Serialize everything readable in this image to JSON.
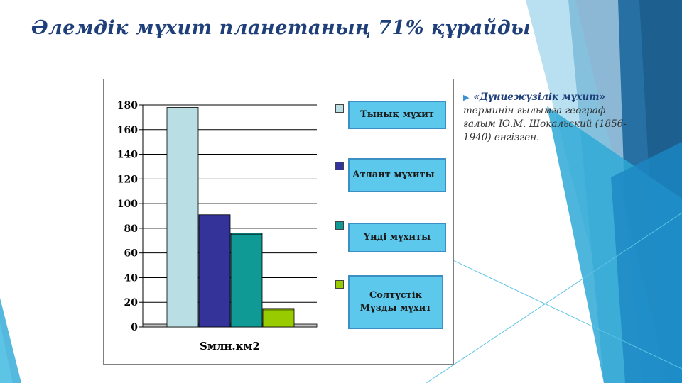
{
  "slide": {
    "title": "Әлемдік мұхит планетаның 71% құрайды",
    "note_term": "«Дүниежүзілік мұхит»",
    "note_text": "терминін ғылымға географ ғалым Ю.М. Шокальский (1856-1940) енгізген."
  },
  "colors": {
    "title": "#1f3f7a",
    "accent": "#3c8fd0",
    "legend_bg": "#5bc8ec"
  },
  "chart_data": {
    "type": "bar",
    "categories": [
      "Sмлн.км2"
    ],
    "series": [
      {
        "name": "Тынық мұхит",
        "values": [
          178
        ],
        "color": "#b9dfe4"
      },
      {
        "name": "Атлант мұхиты",
        "values": [
          91
        ],
        "color": "#333399"
      },
      {
        "name": "Үнді мұхиты",
        "values": [
          76
        ],
        "color": "#109a96"
      },
      {
        "name": "Солтүстік Мұзды мұхит",
        "values": [
          15
        ],
        "color": "#99cc00"
      }
    ],
    "xlabel": "Sмлн.км2",
    "ylabel": "",
    "ylim": [
      0,
      180
    ],
    "yticks": [
      0,
      20,
      40,
      60,
      80,
      100,
      120,
      140,
      160,
      180
    ],
    "grid": true,
    "legend_position": "right"
  }
}
